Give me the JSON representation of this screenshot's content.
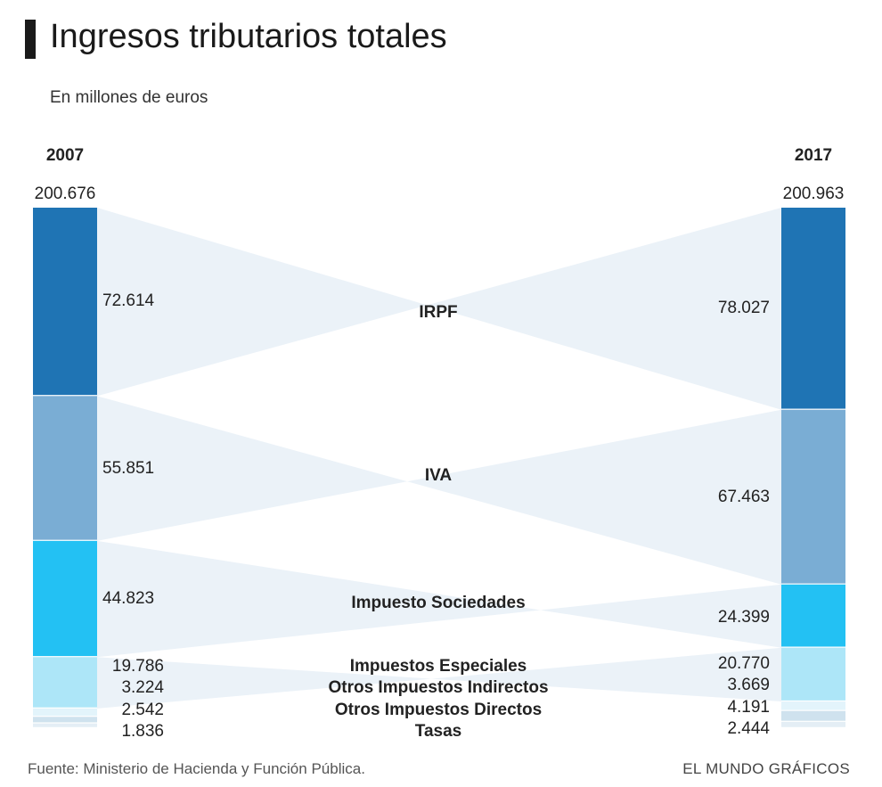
{
  "header": {
    "title": "Ingresos tributarios totales",
    "subtitle": "En millones de euros"
  },
  "footer": {
    "source": "Fuente: Ministerio de Hacienda y Función Pública.",
    "credit": "EL MUNDO GRÁFICOS"
  },
  "colors": {
    "IRPF": "#1f74b4",
    "IVA": "#7aadd4",
    "Impuesto Sociedades": "#23c1f3",
    "Impuestos Especiales": "#ade6f8",
    "Otros Impuestos Indirectos": "#e3f4fb",
    "Otros Impuestos Directos": "#cfe2ee",
    "Tasas": "#e4eef5",
    "flow": "#ebf2f8"
  },
  "chart_data": {
    "type": "slope-stacked-bar",
    "left": {
      "label": "2007",
      "total": "200.676"
    },
    "right": {
      "label": "2017",
      "total": "200.963"
    },
    "categories": [
      "IRPF",
      "IVA",
      "Impuesto Sociedades",
      "Impuestos Especiales",
      "Otros Impuestos Indirectos",
      "Otros Impuestos Directos",
      "Tasas"
    ],
    "values_2007": [
      72614,
      55851,
      44823,
      19786,
      3224,
      2542,
      1836
    ],
    "values_2017": [
      78027,
      67463,
      24399,
      20770,
      3669,
      4191,
      2444
    ],
    "labels_2007": [
      "72.614",
      "55.851",
      "44.823",
      "19.786",
      "3.224",
      "2.542",
      "1.836"
    ],
    "labels_2017": [
      "78.027",
      "67.463",
      "24.399",
      "20.770",
      "3.669",
      "4.191",
      "2.444"
    ]
  }
}
